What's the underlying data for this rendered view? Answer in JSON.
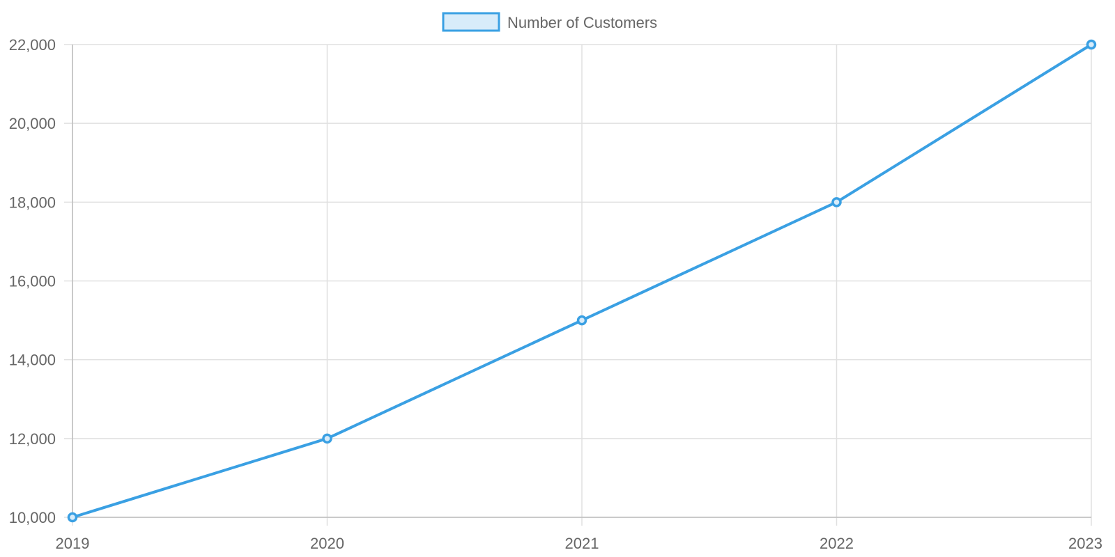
{
  "chart_data": {
    "type": "line",
    "categories": [
      "2019",
      "2020",
      "2021",
      "2022",
      "2023"
    ],
    "series": [
      {
        "name": "Number of Customers",
        "values": [
          10000,
          12000,
          15000,
          18000,
          22000
        ],
        "color": "#3aa0e3",
        "fill_color": "#d8ecfa"
      }
    ],
    "yticks": [
      "10,000",
      "12,000",
      "14,000",
      "16,000",
      "18,000",
      "20,000",
      "22,000"
    ],
    "ylim": [
      10000,
      22000
    ],
    "ytick_values": [
      10000,
      12000,
      14000,
      16000,
      18000,
      20000,
      22000
    ],
    "grid": true,
    "legend_position": "top-center",
    "title": "",
    "xlabel": "",
    "ylabel": ""
  }
}
